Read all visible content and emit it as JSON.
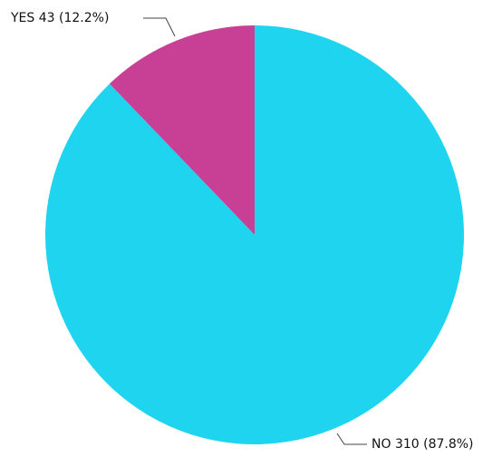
{
  "chart_data": {
    "type": "pie",
    "categories": [
      "YES",
      "NO"
    ],
    "values": [
      43,
      310
    ],
    "value_labels": [
      "43 (12.2%)",
      "310 (87.8%)"
    ],
    "colors": [
      "#c84095",
      "#1fd4ef"
    ]
  }
}
